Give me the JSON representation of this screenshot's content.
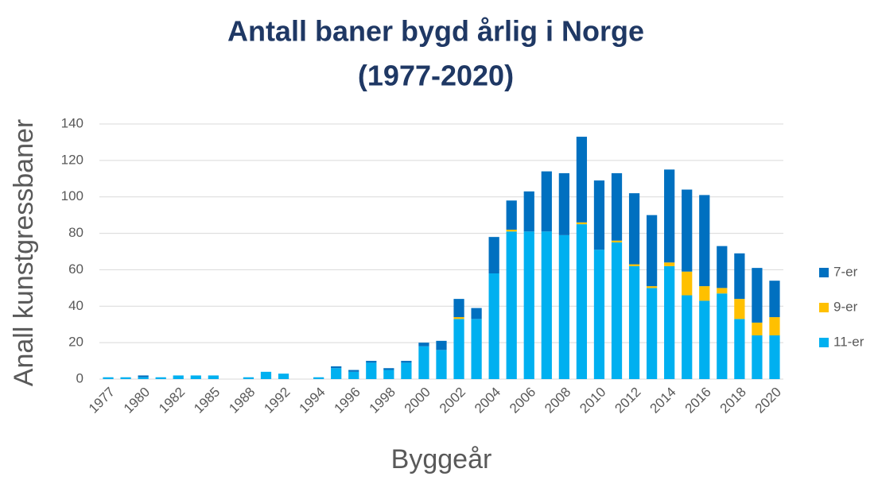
{
  "chart_data": {
    "type": "stacked_bar",
    "title": [
      "Antall baner bygd årlig i Norge",
      "(1977-2020)"
    ],
    "y_label": "Anall kunstgressbaner",
    "x_label": "Byggeår",
    "categories": [
      "1977",
      null,
      "1980",
      null,
      "1982",
      null,
      "1985",
      null,
      "1988",
      null,
      "1992",
      null,
      "1994",
      null,
      "1996",
      null,
      "1998",
      null,
      "2000",
      null,
      "2002",
      null,
      "2004",
      null,
      "2006",
      null,
      "2008",
      null,
      "2010",
      null,
      "2012",
      null,
      "2014",
      null,
      "2016",
      null,
      "2018",
      null,
      "2020"
    ],
    "series": [
      {
        "name": "11-er",
        "color": "#00b0f0",
        "values": [
          1,
          1,
          1,
          1,
          2,
          2,
          2,
          0,
          1,
          4,
          3,
          0,
          1,
          6,
          4,
          9,
          5,
          9,
          18,
          16,
          33,
          33,
          58,
          81,
          81,
          81,
          79,
          85,
          71,
          75,
          62,
          50,
          62,
          46,
          43,
          47,
          33,
          24,
          24
        ]
      },
      {
        "name": "9-er",
        "color": "#ffc000",
        "values": [
          0,
          0,
          0,
          0,
          0,
          0,
          0,
          0,
          0,
          0,
          0,
          0,
          0,
          0,
          0,
          0,
          0,
          0,
          0,
          0,
          1,
          0,
          0,
          1,
          0,
          0,
          0,
          1,
          0,
          1,
          1,
          1,
          2,
          13,
          8,
          3,
          11,
          7,
          10
        ]
      },
      {
        "name": "7-er",
        "color": "#0070c0",
        "values": [
          0,
          0,
          1,
          0,
          0,
          0,
          0,
          0,
          0,
          0,
          0,
          0,
          0,
          1,
          1,
          1,
          1,
          1,
          2,
          5,
          10,
          6,
          20,
          16,
          22,
          33,
          34,
          47,
          38,
          37,
          39,
          39,
          51,
          45,
          50,
          23,
          25,
          30,
          20
        ]
      }
    ],
    "ylim": [
      0,
      140
    ],
    "yticks": [
      0,
      20,
      40,
      60,
      80,
      100,
      120,
      140
    ],
    "grid": true,
    "legend": "right"
  }
}
